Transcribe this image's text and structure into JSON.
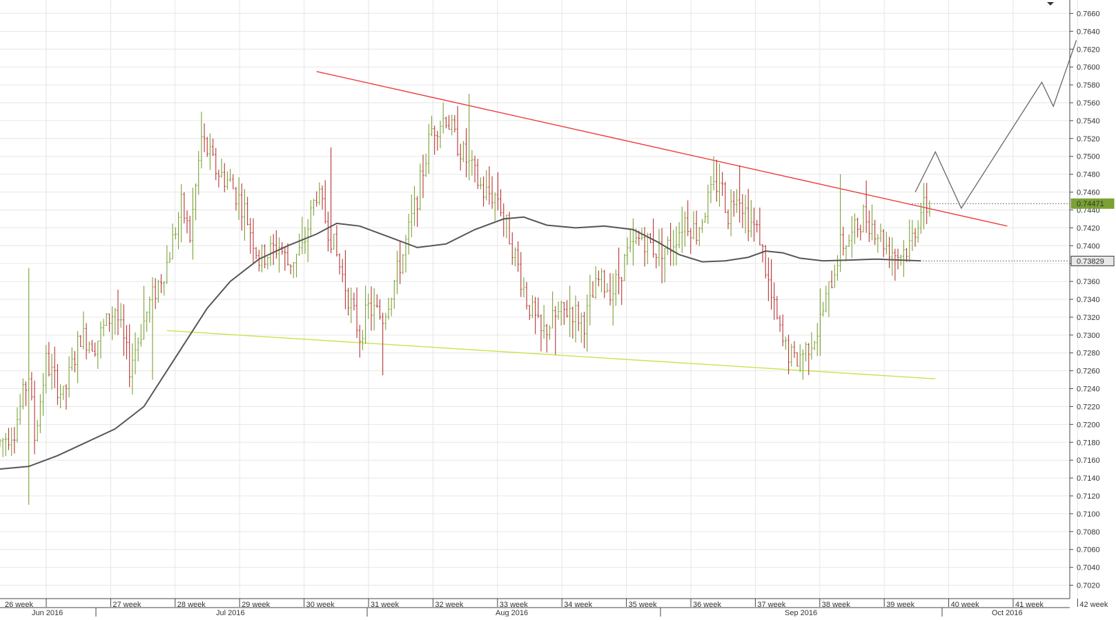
{
  "chart_data": {
    "type": "ohlc",
    "title": "",
    "ylim": [
      0.7005,
      0.7675
    ],
    "y_ticks": [
      "0.7020",
      "0.7040",
      "0.7060",
      "0.7080",
      "0.7100",
      "0.7120",
      "0.7140",
      "0.7160",
      "0.7180",
      "0.7200",
      "0.7220",
      "0.7240",
      "0.7260",
      "0.7280",
      "0.7300",
      "0.7320",
      "0.7340",
      "0.7360",
      "0.7380",
      "0.7400",
      "0.7420",
      "0.7440",
      "0.7460",
      "0.7480",
      "0.7500",
      "0.7520",
      "0.7540",
      "0.7560",
      "0.7580",
      "0.7600",
      "0.7620",
      "0.7640",
      "0.7660"
    ],
    "week_labels": [
      "26 week",
      "27 week",
      "28 week",
      "29 week",
      "30 week",
      "31 week",
      "32 week",
      "33 week",
      "34 week",
      "35 week",
      "36 week",
      "37 week",
      "38 week",
      "39 week",
      "40 week",
      "41 week",
      "42 week"
    ],
    "month_labels": [
      "Jun 2016",
      "Jul 2016",
      "Aug 2016",
      "Sep 2016",
      "Oct 2016"
    ],
    "price_tags": [
      {
        "label": "0.74471",
        "value": 0.74471,
        "color": "#7aa133"
      },
      {
        "label": "0.73829",
        "value": 0.73829,
        "color": "#555555"
      }
    ],
    "grid": true,
    "series": [
      {
        "kind": "ohlc_bars",
        "bar_up_color": "#7aa133",
        "bar_down_color": "#b83232",
        "anchors": [
          [
            0,
            0.718
          ],
          [
            5,
            0.7195
          ],
          [
            10,
            0.7255
          ],
          [
            12,
            0.7185
          ],
          [
            16,
            0.727
          ],
          [
            22,
            0.723
          ],
          [
            28,
            0.73
          ],
          [
            33,
            0.729
          ],
          [
            40,
            0.733
          ],
          [
            45,
            0.7265
          ],
          [
            52,
            0.7335
          ],
          [
            58,
            0.738
          ],
          [
            63,
            0.7445
          ],
          [
            66,
            0.741
          ],
          [
            70,
            0.752
          ],
          [
            75,
            0.7485
          ],
          [
            80,
            0.747
          ],
          [
            85,
            0.744
          ],
          [
            90,
            0.7385
          ],
          [
            97,
            0.74
          ],
          [
            100,
            0.738
          ],
          [
            105,
            0.7395
          ],
          [
            110,
            0.746
          ],
          [
            115,
            0.741
          ],
          [
            120,
            0.7355
          ],
          [
            125,
            0.73
          ],
          [
            128,
            0.733
          ],
          [
            133,
            0.732
          ],
          [
            140,
            0.739
          ],
          [
            145,
            0.7455
          ],
          [
            150,
            0.753
          ],
          [
            155,
            0.7545
          ],
          [
            158,
            0.752
          ],
          [
            163,
            0.749
          ],
          [
            168,
            0.746
          ],
          [
            173,
            0.7455
          ],
          [
            178,
            0.74
          ],
          [
            183,
            0.734
          ],
          [
            188,
            0.73
          ],
          [
            193,
            0.732
          ],
          [
            198,
            0.733
          ],
          [
            203,
            0.7315
          ],
          [
            208,
            0.736
          ],
          [
            213,
            0.735
          ],
          [
            218,
            0.739
          ],
          [
            223,
            0.741
          ],
          [
            228,
            0.7395
          ],
          [
            233,
            0.74
          ],
          [
            238,
            0.743
          ],
          [
            242,
            0.7415
          ],
          [
            246,
            0.745
          ],
          [
            250,
            0.7475
          ],
          [
            253,
            0.7435
          ],
          [
            256,
            0.7465
          ],
          [
            260,
            0.743
          ],
          [
            264,
            0.741
          ],
          [
            268,
            0.734
          ],
          [
            272,
            0.729
          ],
          [
            276,
            0.727
          ],
          [
            280,
            0.7285
          ],
          [
            284,
            0.7305
          ],
          [
            288,
            0.735
          ],
          [
            292,
            0.74
          ],
          [
            296,
            0.741
          ],
          [
            300,
            0.7435
          ],
          [
            304,
            0.742
          ],
          [
            308,
            0.74
          ],
          [
            312,
            0.739
          ],
          [
            316,
            0.74
          ],
          [
            320,
            0.744
          ],
          [
            323,
            0.7445
          ]
        ],
        "high_extremes": [
          [
            10,
            0.7375
          ],
          [
            50,
            0.7355
          ],
          [
            70,
            0.755
          ],
          [
            115,
            0.751
          ],
          [
            163,
            0.757
          ],
          [
            248,
            0.75
          ],
          [
            257,
            0.749
          ],
          [
            292,
            0.748
          ]
        ],
        "low_extremes": [
          [
            10,
            0.711
          ],
          [
            53,
            0.725
          ],
          [
            133,
            0.7255
          ],
          [
            193,
            0.7278
          ],
          [
            279,
            0.725
          ],
          [
            314,
            0.7365
          ]
        ]
      },
      {
        "kind": "moving_average",
        "color": "#555555",
        "points": [
          [
            0,
            0.715
          ],
          [
            10,
            0.7153
          ],
          [
            20,
            0.7165
          ],
          [
            30,
            0.718
          ],
          [
            40,
            0.7195
          ],
          [
            50,
            0.722
          ],
          [
            58,
            0.726
          ],
          [
            66,
            0.73
          ],
          [
            72,
            0.733
          ],
          [
            80,
            0.736
          ],
          [
            90,
            0.7385
          ],
          [
            100,
            0.74
          ],
          [
            110,
            0.7413
          ],
          [
            117,
            0.7425
          ],
          [
            125,
            0.7422
          ],
          [
            135,
            0.741
          ],
          [
            145,
            0.7398
          ],
          [
            155,
            0.7402
          ],
          [
            165,
            0.7418
          ],
          [
            175,
            0.743
          ],
          [
            182,
            0.7432
          ],
          [
            190,
            0.7423
          ],
          [
            200,
            0.742
          ],
          [
            210,
            0.7422
          ],
          [
            220,
            0.7418
          ],
          [
            228,
            0.7405
          ],
          [
            236,
            0.739
          ],
          [
            244,
            0.7382
          ],
          [
            252,
            0.7383
          ],
          [
            260,
            0.7387
          ],
          [
            266,
            0.7394
          ],
          [
            272,
            0.7392
          ],
          [
            278,
            0.7386
          ],
          [
            286,
            0.7383
          ],
          [
            296,
            0.7384
          ],
          [
            304,
            0.7385
          ],
          [
            312,
            0.7384
          ],
          [
            320,
            0.7383
          ]
        ]
      },
      {
        "kind": "trendline",
        "name": "resistance",
        "color": "#ee3b3b",
        "points": [
          [
            110,
            0.7595
          ],
          [
            350,
            0.7422
          ]
        ]
      },
      {
        "kind": "trendline",
        "name": "support",
        "color": "#c8e34a",
        "points": [
          [
            58,
            0.7305
          ],
          [
            325,
            0.7251
          ]
        ]
      },
      {
        "kind": "projection",
        "color": "#666666",
        "points": [
          [
            318,
            0.746
          ],
          [
            325,
            0.7505
          ],
          [
            334,
            0.7442
          ],
          [
            362,
            0.7583
          ],
          [
            366,
            0.7556
          ],
          [
            374,
            0.763
          ]
        ]
      }
    ]
  }
}
